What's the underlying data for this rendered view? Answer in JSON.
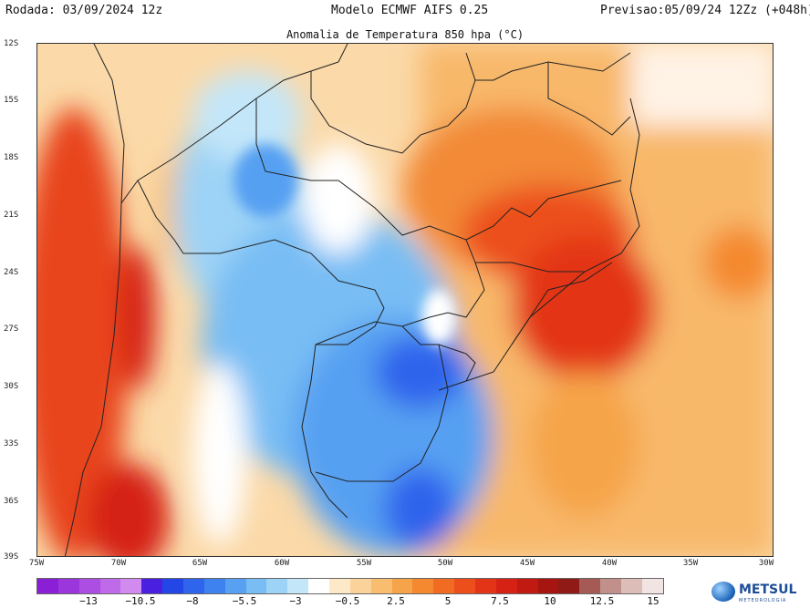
{
  "header": {
    "run": "Rodada: 03/09/2024 12z",
    "model": "Modelo ECMWF AIFS 0.25",
    "forecast": "Previsao:05/09/24 12Zz (+048h)"
  },
  "map": {
    "title": "Anomalia de Temperatura 850 hpa (°C)",
    "lat_labels": [
      "12S",
      "15S",
      "18S",
      "21S",
      "24S",
      "27S",
      "30S",
      "33S",
      "36S",
      "39S"
    ],
    "lon_labels": [
      "75W",
      "70W",
      "65W",
      "60W",
      "55W",
      "50W",
      "45W",
      "40W",
      "35W",
      "30W"
    ]
  },
  "colorbar": {
    "labels": [
      "−13",
      "−10.5",
      "−8",
      "−5.5",
      "−3",
      "−0.5",
      "2.5",
      "5",
      "7.5",
      "10",
      "12.5",
      "15"
    ],
    "colors": [
      "#8a1fd6",
      "#9b36dc",
      "#ac4ee2",
      "#bf6ae8",
      "#d18aee",
      "#4a1fe0",
      "#2346e6",
      "#2f64ec",
      "#3e82f0",
      "#57a0f2",
      "#78bdf4",
      "#9dd3f6",
      "#c3e6f9",
      "#ffffff",
      "#fde8c8",
      "#fbd39a",
      "#f8bd6e",
      "#f6a44a",
      "#f4892f",
      "#f16b22",
      "#ec4f1c",
      "#e33418",
      "#d52214",
      "#c01a12",
      "#a61510",
      "#8f1a16",
      "#a65a55",
      "#c2908a",
      "#dcbdb8",
      "#f1e4e2"
    ]
  },
  "logo": {
    "name": "METSUL",
    "tagline": "METEOROLOGIA"
  }
}
